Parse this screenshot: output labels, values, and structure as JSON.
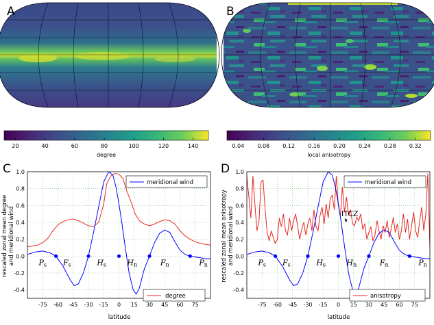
{
  "panels": {
    "A": {
      "label": "A",
      "colorbar": {
        "ticks": [
          "20",
          "40",
          "60",
          "80",
          "100",
          "120",
          "140"
        ],
        "label": "degree"
      }
    },
    "B": {
      "label": "B",
      "colorbar": {
        "ticks": [
          "0.04",
          "0.08",
          "0.12",
          "0.16",
          "0.20",
          "0.24",
          "0.28",
          "0.32"
        ],
        "label": "local anisotropy"
      }
    },
    "C": {
      "label": "C",
      "ylabel_line1": "rescaled zonal mean degree",
      "ylabel_line2": "and meridional wind",
      "xlabel": "latitude",
      "legend": {
        "wind": "meridional wind",
        "other": "degree"
      }
    },
    "D": {
      "label": "D",
      "ylabel_line1": "rescaled zonal mean anisotropy",
      "ylabel_line2": "and meridional wind",
      "xlabel": "latitude",
      "legend": {
        "wind": "meridional wind",
        "other": "anisotropy"
      },
      "annotation": "ITCZ"
    }
  },
  "cell_labels": {
    "Ps": "P",
    "Fs": "F",
    "Hs": "H",
    "Hn": "H",
    "Fn": "F",
    "Pn": "P",
    "sub_s": "s",
    "sub_n": "n"
  },
  "chart_data": [
    {
      "type": "line",
      "panel": "C",
      "xlabel": "latitude",
      "ylabel": "rescaled zonal mean degree and meridional wind",
      "xlim": [
        -90,
        90
      ],
      "ylim": [
        -0.5,
        1.0
      ],
      "x_ticks": [
        "-75",
        "-60",
        "-45",
        "-30",
        "-15",
        "0",
        "15",
        "30",
        "45",
        "60",
        "75"
      ],
      "y_ticks": [
        "1.0",
        "0.8",
        "0.6",
        "0.4",
        "0.2",
        "0.0",
        "-0.2",
        "-0.4"
      ],
      "series": [
        {
          "name": "meridional wind",
          "color": "#0000ff",
          "x": [
            -90,
            -82,
            -75,
            -68,
            -62,
            -55,
            -48,
            -44,
            -40,
            -35,
            -30,
            -25,
            -20,
            -15,
            -10,
            -6,
            -3,
            0,
            3,
            6,
            10,
            14,
            17,
            20,
            25,
            30,
            35,
            40,
            45,
            50,
            55,
            60,
            65,
            70,
            75,
            80,
            85,
            90
          ],
          "y": [
            0.02,
            0.05,
            0.06,
            0.04,
            0.0,
            -0.12,
            -0.28,
            -0.35,
            -0.33,
            -0.2,
            0.0,
            0.28,
            0.58,
            0.88,
            1.0,
            0.96,
            0.82,
            0.62,
            0.38,
            0.12,
            -0.2,
            -0.4,
            -0.45,
            -0.38,
            -0.15,
            0.0,
            0.16,
            0.27,
            0.31,
            0.28,
            0.17,
            0.07,
            0.02,
            0.0,
            -0.01,
            -0.02,
            -0.03,
            -0.03
          ]
        },
        {
          "name": "degree",
          "color": "#e8251f",
          "x": [
            -90,
            -85,
            -80,
            -75,
            -70,
            -65,
            -60,
            -55,
            -50,
            -45,
            -40,
            -35,
            -30,
            -25,
            -20,
            -15,
            -12,
            -8,
            -4,
            0,
            4,
            8,
            12,
            16,
            20,
            25,
            30,
            35,
            40,
            45,
            50,
            55,
            60,
            65,
            70,
            75,
            80,
            85,
            90
          ],
          "y": [
            0.11,
            0.12,
            0.13,
            0.16,
            0.21,
            0.3,
            0.37,
            0.41,
            0.43,
            0.44,
            0.42,
            0.39,
            0.36,
            0.35,
            0.4,
            0.62,
            0.86,
            0.95,
            0.98,
            0.97,
            0.92,
            0.76,
            0.64,
            0.5,
            0.42,
            0.38,
            0.36,
            0.38,
            0.41,
            0.43,
            0.42,
            0.38,
            0.3,
            0.24,
            0.2,
            0.17,
            0.15,
            0.14,
            0.13
          ]
        }
      ],
      "markers": {
        "x": [
          -62,
          -30,
          0,
          30,
          70
        ],
        "y": [
          0,
          0,
          0,
          0,
          0
        ],
        "color": "#0000ff"
      }
    },
    {
      "type": "line",
      "panel": "D",
      "xlabel": "latitude",
      "ylabel": "rescaled zonal mean anisotropy and meridional wind",
      "xlim": [
        -90,
        90
      ],
      "ylim": [
        -0.5,
        1.0
      ],
      "x_ticks": [
        "-75",
        "-60",
        "-45",
        "-30",
        "-15",
        "0",
        "15",
        "30",
        "45",
        "60",
        "75"
      ],
      "y_ticks": [
        "1.0",
        "0.8",
        "0.6",
        "0.4",
        "0.2",
        "0.0",
        "-0.2",
        "-0.4"
      ],
      "series": [
        {
          "name": "meridional wind",
          "color": "#0000ff",
          "x": [
            -90,
            -82,
            -75,
            -68,
            -62,
            -55,
            -48,
            -44,
            -40,
            -35,
            -30,
            -25,
            -20,
            -15,
            -10,
            -6,
            -3,
            0,
            3,
            6,
            10,
            14,
            17,
            20,
            25,
            30,
            35,
            40,
            45,
            50,
            55,
            60,
            65,
            70,
            75,
            80,
            85,
            90
          ],
          "y": [
            0.02,
            0.05,
            0.06,
            0.04,
            0.0,
            -0.12,
            -0.28,
            -0.35,
            -0.33,
            -0.2,
            0.0,
            0.28,
            0.58,
            0.88,
            1.0,
            0.96,
            0.82,
            0.62,
            0.38,
            0.12,
            -0.2,
            -0.4,
            -0.45,
            -0.38,
            -0.15,
            0.0,
            0.16,
            0.27,
            0.31,
            0.28,
            0.17,
            0.07,
            0.02,
            0.0,
            -0.01,
            -0.02,
            -0.03,
            -0.03
          ]
        },
        {
          "name": "anisotropy",
          "color": "#e8251f",
          "x": [
            -90,
            -88,
            -86,
            -84,
            -82,
            -80,
            -78,
            -76,
            -74,
            -72,
            -70,
            -68,
            -66,
            -64,
            -62,
            -60,
            -58,
            -56,
            -54,
            -52,
            -50,
            -48,
            -46,
            -44,
            -42,
            -40,
            -38,
            -36,
            -34,
            -32,
            -30,
            -28,
            -26,
            -24,
            -22,
            -20,
            -18,
            -16,
            -14,
            -12,
            -10,
            -8,
            -6,
            -4,
            -2,
            0,
            2,
            4,
            6,
            8,
            10,
            12,
            14,
            16,
            18,
            20,
            22,
            24,
            26,
            28,
            30,
            32,
            34,
            36,
            38,
            40,
            42,
            44,
            46,
            48,
            50,
            52,
            54,
            56,
            58,
            60,
            62,
            64,
            66,
            68,
            70,
            72,
            74,
            76,
            78,
            80,
            82,
            84,
            86,
            88,
            90
          ],
          "y": [
            0.95,
            0.7,
            0.45,
            0.95,
            0.6,
            0.3,
            0.42,
            0.88,
            0.9,
            0.55,
            0.28,
            0.18,
            0.3,
            0.22,
            0.15,
            0.2,
            0.45,
            0.35,
            0.5,
            0.3,
            0.25,
            0.45,
            0.3,
            0.42,
            0.5,
            0.35,
            0.2,
            0.32,
            0.4,
            0.25,
            0.38,
            0.45,
            0.3,
            0.55,
            0.35,
            0.3,
            0.48,
            0.58,
            0.38,
            0.62,
            0.45,
            0.68,
            0.72,
            0.55,
            0.95,
            0.6,
            0.48,
            0.82,
            0.52,
            0.7,
            0.48,
            0.55,
            0.38,
            0.36,
            0.46,
            0.42,
            0.5,
            0.32,
            0.38,
            0.2,
            0.28,
            0.35,
            0.18,
            0.25,
            0.42,
            0.3,
            0.2,
            0.36,
            0.28,
            0.42,
            0.22,
            0.32,
            0.46,
            0.28,
            0.38,
            0.2,
            0.3,
            0.5,
            0.28,
            0.44,
            0.2,
            0.36,
            0.52,
            0.3,
            0.22,
            0.42,
            0.58,
            0.3,
            0.5,
            0.98,
            0.1
          ]
        }
      ],
      "markers": {
        "x": [
          -62,
          -30,
          0,
          30,
          70
        ],
        "y": [
          0,
          0,
          0,
          0,
          0
        ],
        "color": "#0000ff"
      }
    }
  ]
}
